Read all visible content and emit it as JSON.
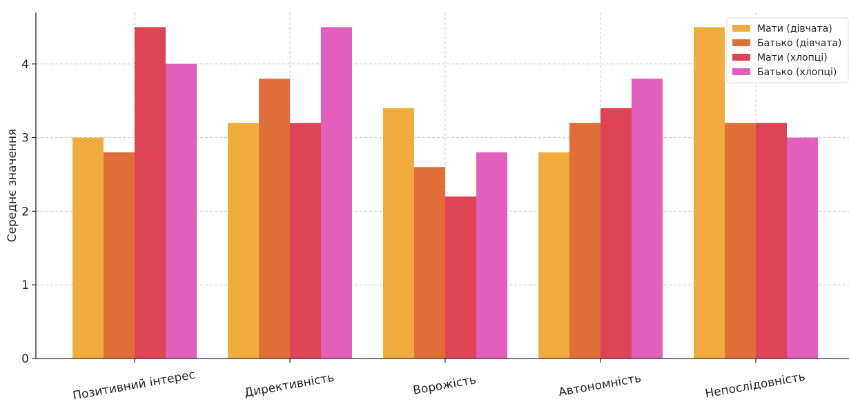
{
  "chart_data": {
    "type": "bar",
    "categories": [
      "Позитивний інтерес",
      "Директивність",
      "Ворожість",
      "Автономність",
      "Непослідовність"
    ],
    "series": [
      {
        "name": "Мати (дівчата)",
        "color": "#F0AD3E",
        "values": [
          3.0,
          3.2,
          3.4,
          2.8,
          4.5
        ]
      },
      {
        "name": "Батько (дівчата)",
        "color": "#E06E38",
        "values": [
          2.8,
          3.8,
          2.6,
          3.2,
          3.2
        ]
      },
      {
        "name": "Мати (хлопці)",
        "color": "#DF4455",
        "values": [
          4.5,
          3.2,
          2.2,
          3.4,
          3.2
        ]
      },
      {
        "name": "Батько (хлопці)",
        "color": "#E35FBC",
        "values": [
          4.0,
          4.5,
          2.8,
          3.8,
          3.0
        ]
      }
    ],
    "title": "",
    "xlabel": "",
    "ylabel": "Середнє значення",
    "ylim": [
      0,
      4.7
    ],
    "yticks": [
      "0",
      "1",
      "2",
      "3",
      "4"
    ],
    "grid": true,
    "legend_position": "top-right"
  }
}
